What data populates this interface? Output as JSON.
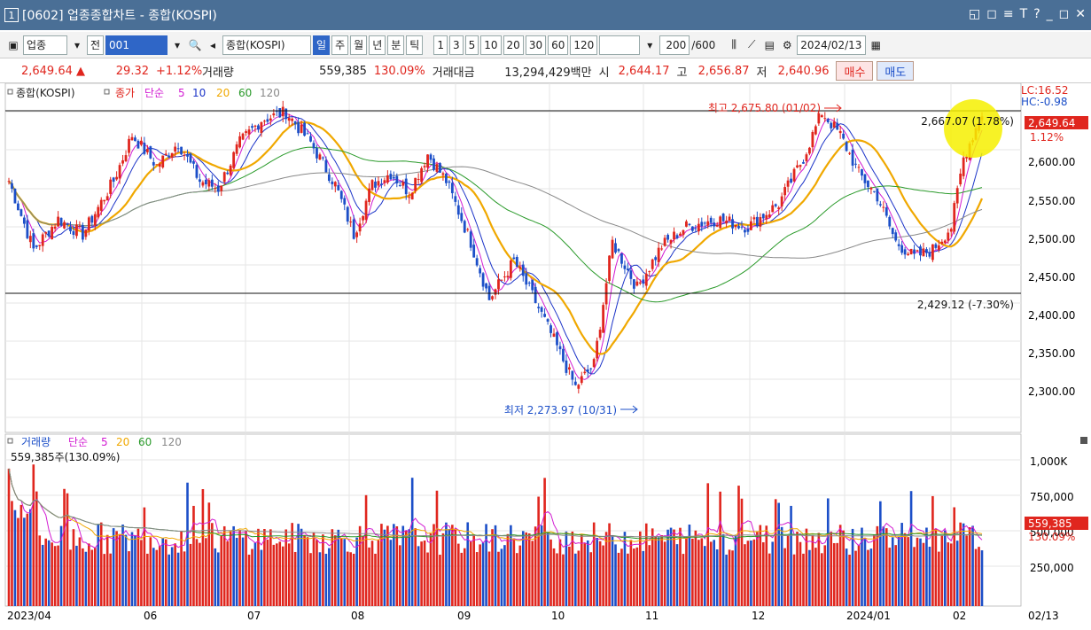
{
  "window": {
    "number": "1",
    "title": "[0602] 업종종합차트 - 종합(KOSPI)",
    "controls": [
      "◱",
      "◻",
      "≡",
      "T",
      "?",
      "_",
      "◻",
      "✕"
    ]
  },
  "toolbar": {
    "category": "업종",
    "prev": "전",
    "code": "001",
    "name": "종합(KOSPI)",
    "periods": [
      "일",
      "주",
      "월",
      "년",
      "분",
      "틱"
    ],
    "active_period": "일",
    "intervals": [
      "1",
      "3",
      "5",
      "10",
      "20",
      "30",
      "60",
      "120"
    ],
    "count": "200",
    "total": "/600",
    "date": "2024/02/13"
  },
  "quote": {
    "price": "2,649.64",
    "change": "29.32",
    "rate": "+1.12%",
    "vol_label": "거래량",
    "vol": "559,385",
    "vol_rate": "130.09%",
    "amt_label": "거래대금",
    "amt": "13,294,429백만",
    "open_label": "시",
    "open": "2,644.17",
    "high_label": "고",
    "high": "2,656.87",
    "low_label": "저",
    "low": "2,640.96",
    "buy": "매수",
    "sell": "매도"
  },
  "price_panel": {
    "title": "종합(KOSPI)",
    "legend": [
      "종가",
      "단순",
      "5",
      "10",
      "20",
      "60",
      "120"
    ],
    "lc": "LC:16.52",
    "hc": "HC:-0.98",
    "current": "2,649.64",
    "current_rate": "1.12%",
    "hline_top": "2,667.07 (1.78%)",
    "hline_bottom": "2,429.12 (-7.30%)",
    "max": "최고 2,675.80 (01/02)",
    "min": "최저 2,273.97 (10/31)",
    "y_ticks": [
      "2,600.00",
      "2,550.00",
      "2,500.00",
      "2,450.00",
      "2,400.00",
      "2,350.00",
      "2,300.00"
    ]
  },
  "volume_panel": {
    "legend": [
      "거래량",
      "단순",
      "5",
      "20",
      "60",
      "120"
    ],
    "value": "559,385주(130.09%)",
    "current": "559,385",
    "current_rate": "130.09%",
    "y_ticks": [
      "1,000K",
      "750,000",
      "500,000",
      "250,000"
    ]
  },
  "x_axis": [
    "2023/04",
    "06",
    "07",
    "08",
    "09",
    "10",
    "11",
    "12",
    "2024/01",
    "02",
    "02/13"
  ],
  "colors": {
    "up": "#e0261e",
    "down": "#1c4fc8",
    "ma5": "#d21bd2",
    "ma10": "#1c34c8",
    "ma20": "#f0a800",
    "ma60": "#2a9a2a",
    "ma120": "#888888"
  }
}
